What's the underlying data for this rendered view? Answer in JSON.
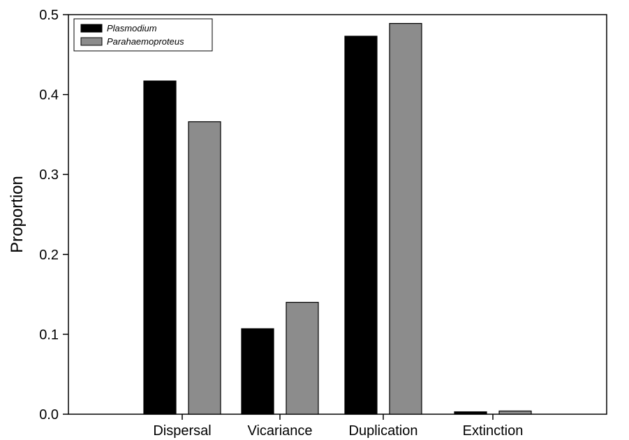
{
  "chart_data": {
    "type": "bar",
    "title": "",
    "xlabel": "",
    "ylabel": "Proportion",
    "ylim": [
      0,
      0.5
    ],
    "yticks": [
      "0.0",
      "0.1",
      "0.2",
      "0.3",
      "0.4",
      "0.5"
    ],
    "categories": [
      "Dispersal",
      "Vicariance",
      "Duplication",
      "Extinction"
    ],
    "series": [
      {
        "name": "Plasmodium",
        "color": "#000000",
        "values": [
          0.417,
          0.107,
          0.473,
          0.003
        ]
      },
      {
        "name": "Parahaemoproteus",
        "color": "#8c8c8c",
        "values": [
          0.366,
          0.14,
          0.489,
          0.004
        ]
      }
    ],
    "grid": false,
    "legend_position": "top-left"
  }
}
